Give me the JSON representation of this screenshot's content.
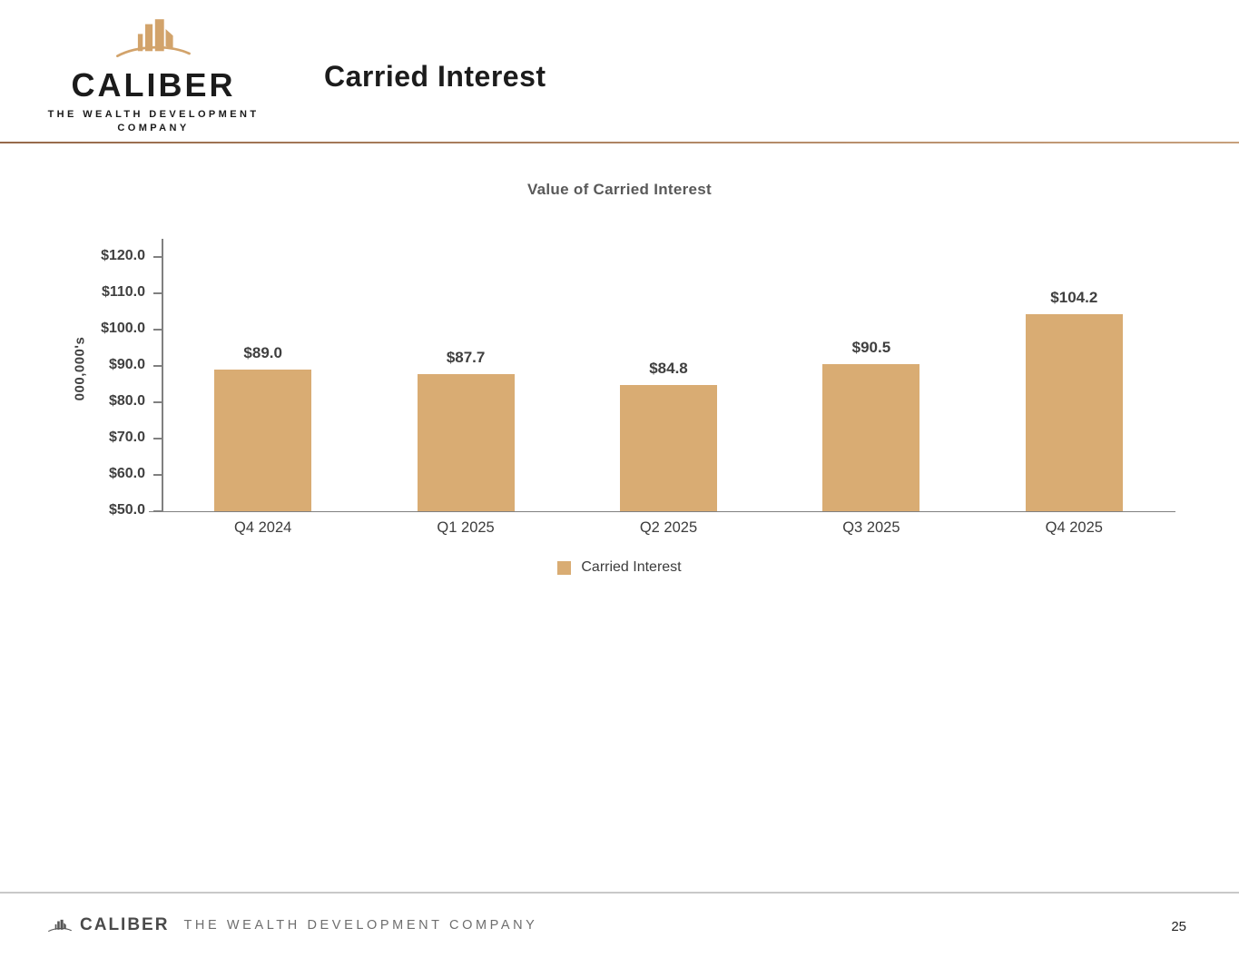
{
  "header": {
    "brand": "CALIBER",
    "tagline_line1": "THE WEALTH DEVELOPMENT",
    "tagline_line2": "COMPANY",
    "page_title": "Carried Interest"
  },
  "chart_data": {
    "type": "bar",
    "title": "Value of Carried Interest",
    "categories": [
      "Q4 2024",
      "Q1 2025",
      "Q2 2025",
      "Q3 2025",
      "Q4 2025"
    ],
    "values": [
      89.0,
      87.7,
      84.8,
      90.5,
      104.2
    ],
    "data_labels": [
      "$89.0",
      "$87.7",
      "$84.8",
      "$90.5",
      "$104.2"
    ],
    "xlabel": "",
    "ylabel": "000,000's",
    "ylim": [
      50,
      120
    ],
    "ytick_step": 10,
    "ytick_labels": [
      "$50.0",
      "$60.0",
      "$70.0",
      "$80.0",
      "$90.0",
      "$100.0",
      "$110.0",
      "$120.0"
    ],
    "grid": false,
    "bar_color": "#D9AC73",
    "legend": {
      "position": "bottom",
      "entries": [
        {
          "label": "Carried Interest",
          "color": "#D9AC73"
        }
      ]
    }
  },
  "footer": {
    "brand": "CALIBER",
    "tagline": "THE WEALTH DEVELOPMENT COMPANY",
    "page_number": "25"
  },
  "colors": {
    "bar": "#D9AC73",
    "logo_gold": "#D2A36B",
    "divider": "#A87E5B",
    "axis_line": "#808080",
    "text_dark": "#3F3F3F",
    "chart_title_gray": "#595959",
    "footer_gray": "#6E6E6E"
  }
}
